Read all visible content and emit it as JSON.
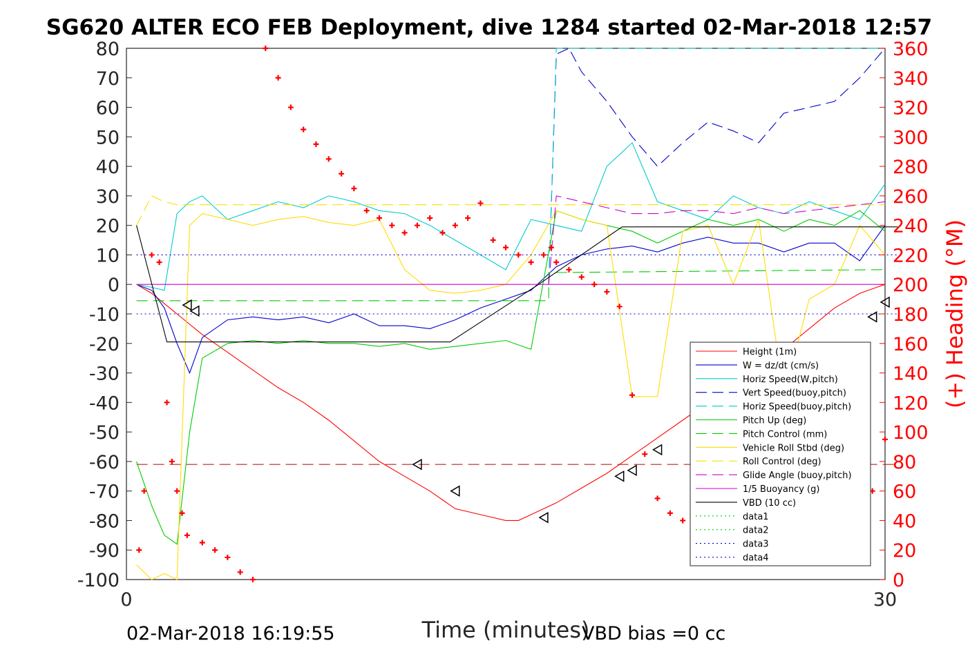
{
  "chart_data": {
    "type": "line",
    "title": "SG620 ALTER ECO FEB Deployment, dive 1284 started 02-Mar-2018 12:57",
    "xlabel": "Time (minutes)",
    "ylabel_right": "(+) Heading (°M)",
    "xlim": [
      0,
      30
    ],
    "ylim_left": [
      -100,
      80
    ],
    "ylim_right": [
      0,
      360
    ],
    "x_ticks": [
      "0",
      "30"
    ],
    "y_ticks_left": [
      "80",
      "70",
      "60",
      "50",
      "40",
      "30",
      "20",
      "10",
      "0",
      "-10",
      "-20",
      "-30",
      "-40",
      "-50",
      "-60",
      "-70",
      "-80",
      "-90",
      "-100"
    ],
    "y_ticks_right": [
      "360",
      "340",
      "320",
      "300",
      "280",
      "260",
      "240",
      "220",
      "200",
      "180",
      "160",
      "140",
      "120",
      "100",
      "80",
      "60",
      "40",
      "20",
      "0"
    ],
    "footer_left": "02-Mar-2018 16:19:55",
    "footer_right": "VBD bias =0 cc",
    "grid": false,
    "legend_position": "lower-right",
    "series": [
      {
        "name": "Height (1m)",
        "color": "#ff0000",
        "style": "solid",
        "x": [
          0.4,
          1,
          2,
          3,
          4,
          5,
          6,
          7,
          8,
          9,
          10,
          11,
          12,
          12.5,
          13,
          14,
          15,
          15.5,
          16,
          17,
          18,
          19,
          20,
          21,
          22,
          23,
          24,
          25,
          26,
          27,
          28,
          29,
          30
        ],
        "y": [
          0,
          -3,
          -10,
          -17,
          -23,
          -29,
          -35,
          -40,
          -46,
          -53,
          -60,
          -65,
          -70,
          -73,
          -76,
          -78,
          -80,
          -80,
          -78,
          -74,
          -69,
          -64,
          -58,
          -52,
          -46,
          -40,
          -34,
          -28,
          -22,
          -15,
          -8,
          -3,
          0
        ]
      },
      {
        "name": "W = dz/dt (cm/s)",
        "color": "#0000cc",
        "style": "solid",
        "x": [
          0.4,
          1,
          1.5,
          2,
          2.5,
          3,
          4,
          5,
          6,
          7,
          8,
          9,
          10,
          11,
          12,
          13,
          14,
          15,
          16,
          17,
          18,
          19,
          20,
          21,
          22,
          23,
          24,
          25,
          26,
          27,
          28,
          29,
          30
        ],
        "y": [
          0,
          -2,
          -8,
          -20,
          -30,
          -18,
          -12,
          -11,
          -12,
          -11,
          -13,
          -10,
          -14,
          -14,
          -15,
          -12,
          -8,
          -5,
          -2,
          6,
          10,
          12,
          13,
          11,
          14,
          16,
          14,
          14,
          11,
          14,
          14,
          8,
          20
        ]
      },
      {
        "name": "Horiz Speed(W,pitch)",
        "color": "#00cccc",
        "style": "solid",
        "x": [
          0.4,
          1,
          1.5,
          2,
          2.5,
          3,
          4,
          5,
          6,
          7,
          8,
          9,
          10,
          11,
          12,
          13,
          14,
          15,
          16,
          17,
          18,
          19,
          20,
          21,
          22,
          23,
          24,
          25,
          26,
          27,
          28,
          29,
          30
        ],
        "y": [
          0,
          -1,
          -2,
          24,
          28,
          30,
          22,
          25,
          28,
          26,
          30,
          28,
          25,
          24,
          20,
          15,
          10,
          5,
          22,
          20,
          18,
          40,
          48,
          28,
          25,
          22,
          30,
          26,
          24,
          28,
          25,
          22,
          34
        ]
      },
      {
        "name": "Vert Speed(buoy,pitch)",
        "color": "#0000cc",
        "style": "dashed",
        "x": [
          16.7,
          17,
          17.5,
          18,
          19,
          20,
          21,
          22,
          23,
          24,
          25,
          26,
          27,
          28,
          29,
          30
        ],
        "y": [
          0,
          78,
          80,
          72,
          62,
          50,
          40,
          48,
          55,
          52,
          48,
          58,
          60,
          62,
          70,
          80
        ]
      },
      {
        "name": "Horiz Speed(buoy,pitch)",
        "color": "#00cccc",
        "style": "dashed",
        "x": [
          16.7,
          17,
          30
        ],
        "y": [
          0,
          80,
          80
        ]
      },
      {
        "name": "Pitch Up (deg)",
        "color": "#00cc00",
        "style": "solid",
        "x": [
          0.4,
          1,
          1.5,
          2,
          2.5,
          3,
          4,
          5,
          6,
          7,
          8,
          9,
          10,
          11,
          12,
          13,
          14,
          15,
          16,
          17,
          18,
          19,
          20,
          21,
          22,
          23,
          24,
          25,
          26,
          27,
          28,
          29,
          30
        ],
        "y": [
          -60,
          -75,
          -85,
          -88,
          -50,
          -25,
          -20,
          -19,
          -20,
          -19,
          -20,
          -20,
          -21,
          -20,
          -22,
          -21,
          -20,
          -19,
          -22,
          25,
          22,
          20,
          18,
          14,
          18,
          22,
          20,
          22,
          18,
          22,
          20,
          25,
          18
        ]
      },
      {
        "name": "Pitch Control (mm)",
        "color": "#00cc00",
        "style": "dashed",
        "x": [
          0.4,
          16.7,
          16.7,
          30
        ],
        "y": [
          -5.5,
          -5.5,
          4,
          5
        ]
      },
      {
        "name": "Vehicle Roll Stbd (deg)",
        "color": "#ffdd00",
        "style": "solid",
        "x": [
          0.4,
          1,
          1.5,
          2,
          2.5,
          3,
          4,
          5,
          6,
          7,
          8,
          9,
          10,
          11,
          12,
          13,
          14,
          15,
          16,
          17,
          18,
          19,
          20,
          21,
          22,
          23,
          24,
          25,
          26,
          27,
          28,
          29,
          30
        ],
        "y": [
          -95,
          -100,
          -98,
          -100,
          20,
          24,
          22,
          20,
          22,
          23,
          21,
          20,
          22,
          5,
          -2,
          -3,
          -2,
          0,
          10,
          25,
          22,
          20,
          -38,
          -38,
          18,
          20,
          0,
          22,
          -38,
          -5,
          0,
          20,
          10
        ]
      },
      {
        "name": "Roll Control (deg)",
        "color": "#ffdd00",
        "style": "dashed",
        "x": [
          0.4,
          1,
          1.5,
          2,
          2.5,
          3,
          30
        ],
        "y": [
          20,
          30,
          28,
          27,
          27,
          27,
          27
        ]
      },
      {
        "name": "Glide Angle (buoy,pitch)",
        "color": "#cc00cc",
        "style": "dashed",
        "x": [
          16.7,
          17,
          18,
          19,
          20,
          21,
          22,
          23,
          24,
          25,
          26,
          27,
          28,
          29,
          30
        ],
        "y": [
          0,
          30,
          28,
          26,
          24,
          24,
          25,
          25,
          24,
          26,
          24,
          25,
          26,
          27,
          28
        ]
      },
      {
        "name": "1/5 Buoyancy (g)",
        "color": "#cc00cc",
        "style": "solid",
        "x": [
          0.4,
          30
        ],
        "y": [
          0,
          0
        ]
      },
      {
        "name": "VBD (10 cc)",
        "color": "#000000",
        "style": "solid",
        "x": [
          0.4,
          1.6,
          12.8,
          16.3,
          19.6,
          30.5
        ],
        "y": [
          20,
          -19.5,
          -19.5,
          0,
          19.5,
          19.5
        ]
      },
      {
        "name": "data1",
        "color": "#00cc00",
        "style": "dotted",
        "x": [],
        "y": []
      },
      {
        "name": "data2",
        "color": "#00cc00",
        "style": "dotted",
        "x": [],
        "y": []
      },
      {
        "name": "data3",
        "color": "#0000cc",
        "style": "dotted",
        "x": [
          0.4,
          30.5
        ],
        "y": [
          10,
          10
        ]
      },
      {
        "name": "data4",
        "color": "#0000cc",
        "style": "dotted",
        "x": [
          0.4,
          30.5
        ],
        "y": [
          -10,
          -10
        ]
      }
    ],
    "heading": {
      "color": "#ff0000",
      "marker": "+",
      "x": [
        0.5,
        0.7,
        1,
        1.3,
        1.6,
        1.8,
        2,
        2.2,
        2.4,
        3,
        3.5,
        4,
        4.5,
        5,
        5.5,
        6,
        6.5,
        7,
        7.5,
        8,
        8.5,
        9,
        9.5,
        10,
        10.5,
        11,
        11.5,
        12,
        12.5,
        13,
        13.5,
        14,
        14.5,
        15,
        15.5,
        16,
        16.5,
        16.8,
        17,
        17.5,
        18,
        18.5,
        19,
        19.5,
        20,
        20.5,
        21,
        21.5,
        22,
        22.5,
        23,
        23.5,
        24,
        24.5,
        25,
        25.5,
        26,
        26.5,
        27,
        27.5,
        28,
        28.5,
        29,
        29.5,
        30
      ],
      "y": [
        20,
        60,
        220,
        215,
        120,
        80,
        60,
        45,
        30,
        25,
        20,
        15,
        5,
        0,
        360,
        340,
        320,
        305,
        295,
        285,
        275,
        265,
        250,
        245,
        240,
        235,
        240,
        245,
        235,
        240,
        245,
        255,
        230,
        225,
        220,
        215,
        220,
        225,
        215,
        210,
        205,
        200,
        195,
        185,
        125,
        85,
        55,
        45,
        40,
        40,
        38,
        50,
        90,
        120,
        145,
        135,
        130,
        140,
        155,
        145,
        140,
        95,
        60,
        60,
        95
      ]
    },
    "direction_markers": {
      "x": [
        2.4,
        2.7,
        11.5,
        13,
        16.5,
        19.5,
        20,
        21,
        23.5,
        24.5,
        26,
        27,
        29.5,
        30
      ],
      "y": [
        -7,
        -9,
        -61,
        -70,
        -79,
        -65,
        -63,
        -56,
        -44,
        -37,
        -26,
        -22,
        -11,
        -6
      ]
    },
    "reference_lines": [
      {
        "y": -61,
        "color": "#b30000",
        "style": "dashed"
      }
    ]
  }
}
